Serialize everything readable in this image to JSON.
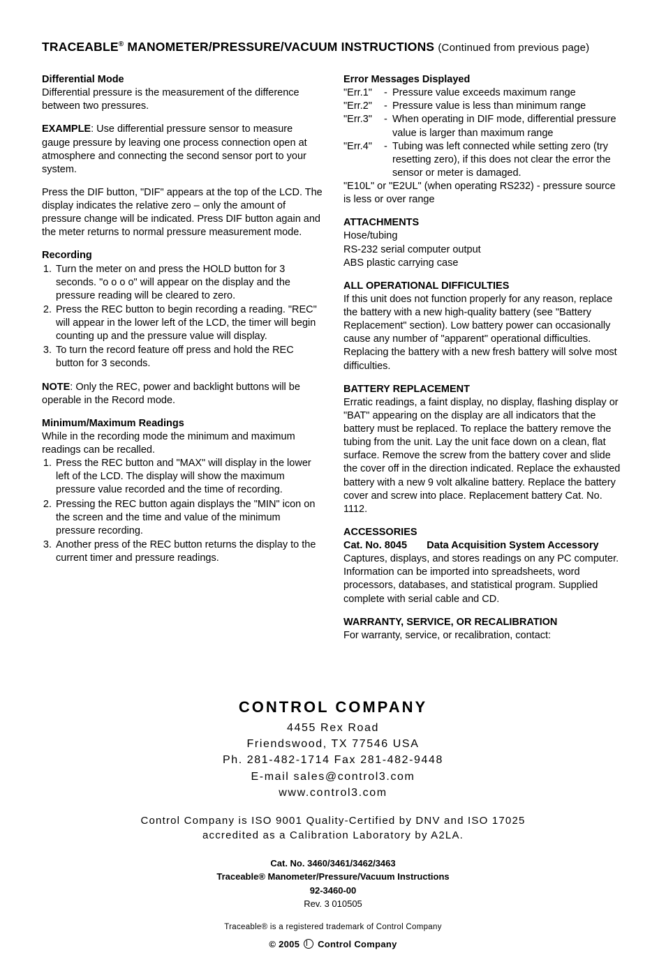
{
  "title": {
    "brand": "TRACEABLE",
    "reg": "®",
    "rest": " MANOMETER/PRESSURE/VACUUM INSTRUCTIONS",
    "continued": "(Continued from previous page)"
  },
  "left": {
    "diff_head": "Differential Mode",
    "diff_body": "Differential pressure is the measurement of the difference between two pressures.",
    "example_label": "EXAMPLE",
    "example_body": ":  Use differential pressure sensor to measure gauge pressure by leaving one process connection open at atmosphere and connecting the second sensor port to your system.",
    "diff_press": "Press the DIF button, \"DIF\" appears at the top of the LCD. The display indicates the relative zero – only the amount of pressure change will be indicated.   Press DIF button again and the meter returns to normal pressure measurement mode.",
    "rec_head": "Recording",
    "rec_steps": [
      "Turn the meter on and press the HOLD button for 3 seconds.  \"o o o o\" will appear on the display and the pressure reading will be cleared to zero.",
      "Press the REC button to begin recording a reading.  \"REC\" will appear in the lower left of the LCD, the timer will begin counting up and the pressure value will display.",
      "To turn the record feature off press and hold the REC button for 3 seconds."
    ],
    "note_label": "NOTE",
    "note_body": ": Only the REC, power and backlight buttons will be operable in the Record mode.",
    "minmax_head": "Minimum/Maximum Readings",
    "minmax_intro": "While in the recording mode the minimum and maximum readings can be recalled.",
    "minmax_steps": [
      "Press the REC button and \"MAX\" will display in the lower left of the LCD.  The display will show the maximum pressure value recorded and the time of recording.",
      "Pressing the REC button again displays the \"MIN\" icon on the screen and the time and value of the minimum pressure recording.",
      "Another press of the REC button returns the display to the current timer  and pressure readings."
    ]
  },
  "right": {
    "err_head": "Error Messages Displayed",
    "errs": [
      {
        "code": "\"Err.1\"",
        "desc": "Pressure value exceeds maximum range"
      },
      {
        "code": "\"Err.2\"",
        "desc": "Pressure value is less than minimum range"
      },
      {
        "code": "\"Err.3\"",
        "desc": "When operating in DIF mode, differential pressure  value is larger than maximum range"
      },
      {
        "code": "\"Err.4\"",
        "desc": "Tubing was left connected while setting zero (try resetting zero), if this does not clear the error  the sensor or meter is damaged."
      }
    ],
    "err_long": {
      "code": "\"E10L\" or \"E2UL\" (when operating RS232) -",
      "desc": "pressure source is less or over range"
    },
    "attach_head": "ATTACHMENTS",
    "attach_lines": [
      "Hose/tubing",
      "RS-232 serial computer output",
      "ABS plastic carrying case"
    ],
    "opdiff_head": "ALL OPERATIONAL DIFFICULTIES",
    "opdiff_body": "If this unit does not function properly for any reason, replace the battery with a new high-quality battery (see \"Battery Replacement\" section). Low battery power can occasionally cause any number of \"apparent\" operational difficulties. Replacing the battery with a new fresh battery will solve most difficulties.",
    "batt_head": "BATTERY REPLACEMENT",
    "batt_body": "Erratic readings, a faint display, no display, flashing display or \"BAT\" appearing on the display are all indicators that the battery must be replaced.  To replace the battery remove the tubing from the unit. Lay the unit face down on a clean, flat surface. Remove the screw from the battery cover and slide the cover off in the direction indicated. Replace the exhausted battery with a new 9 volt alkaline battery.  Replace the battery cover and screw into place.  Replacement battery Cat. No. 1112.",
    "acc_head": "ACCESSORIES",
    "acc_cat": "Cat. No. 8045",
    "acc_title": "Data Acquisition System Accessory",
    "acc_body": "Captures, displays, and stores readings on any PC computer. Information can be imported into spreadsheets, word processors, databases, and statistical program.  Supplied complete with serial cable and CD.",
    "warr_head": "WARRANTY, SERVICE, OR RECALIBRATION",
    "warr_body": "For warranty, service, or recalibration, contact:"
  },
  "footer": {
    "company": "CONTROL COMPANY",
    "addr1": "4455 Rex Road",
    "addr2": "Friendswood, TX 77546 USA",
    "phone": "Ph. 281-482-1714       Fax 281-482-9448",
    "email": "E-mail sales@control3.com",
    "web": "www.control3.com",
    "iso1": "Control Company is ISO 9001 Quality-Certified by DNV and ISO 17025",
    "iso2": "accredited as a Calibration Laboratory by A2LA.",
    "cat": "Cat. No. 3460/3461/3462/3463",
    "prod": "Traceable® Manometer/Pressure/Vacuum Instructions",
    "partno": "92-3460-00",
    "rev": "Rev. 3 010505",
    "tm": "Traceable® is a registered trademark of Control Company",
    "copy": "© 2005",
    "copy2": "Control Company"
  }
}
